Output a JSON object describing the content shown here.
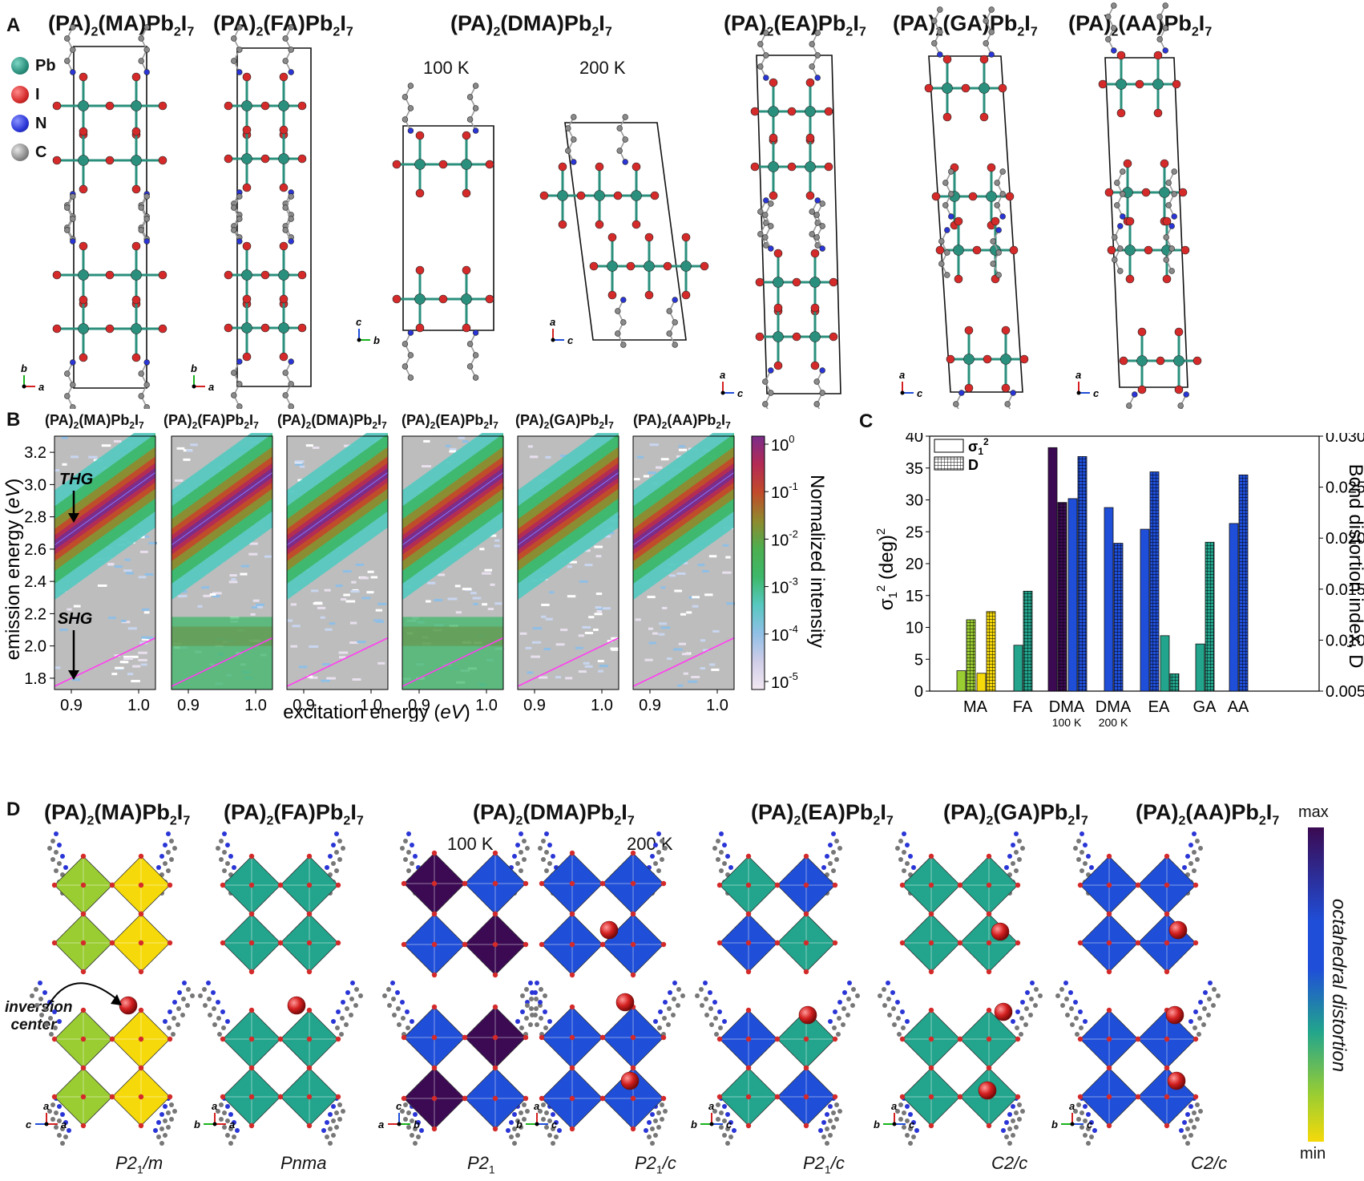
{
  "panel_a": {
    "label": "A",
    "titles": [
      {
        "prefix": "(PA)",
        "s1": "2",
        "mid": "(MA)Pb",
        "s2": "2",
        "end": "I",
        "s3": "7"
      },
      {
        "prefix": "(PA)",
        "s1": "2",
        "mid": "(FA)Pb",
        "s2": "2",
        "end": "I",
        "s3": "7"
      },
      {
        "prefix": "(PA)",
        "s1": "2",
        "mid": "(DMA)Pb",
        "s2": "2",
        "end": "I",
        "s3": "7"
      },
      {
        "prefix": "(PA)",
        "s1": "2",
        "mid": "(EA)Pb",
        "s2": "2",
        "end": "I",
        "s3": "7"
      },
      {
        "prefix": "(PA)",
        "s1": "2",
        "mid": "(GA)Pb",
        "s2": "2",
        "end": "I",
        "s3": "7"
      },
      {
        "prefix": "(PA)",
        "s1": "2",
        "mid": "(AA)Pb",
        "s2": "2",
        "end": "I",
        "s3": "7"
      }
    ],
    "temps": [
      "100 K",
      "200 K"
    ],
    "legend": [
      {
        "label": "Pb",
        "color": "#2a8f7c"
      },
      {
        "label": "I",
        "color": "#d42a2a"
      },
      {
        "label": "N",
        "color": "#2a35d6"
      },
      {
        "label": "C",
        "color": "#8a8a8a"
      }
    ],
    "axes": [
      [
        "b",
        "a"
      ],
      [
        "b",
        "a"
      ],
      [
        "c",
        "b"
      ],
      [
        "a",
        "c"
      ],
      [
        "a",
        "c"
      ],
      [
        "a",
        "c"
      ],
      [
        "a",
        "c"
      ]
    ]
  },
  "panel_b": {
    "label": "B",
    "titles": [
      {
        "prefix": "(PA)",
        "s1": "2",
        "mid": "(MA)Pb",
        "s2": "2",
        "end": "I",
        "s3": "7"
      },
      {
        "prefix": "(PA)",
        "s1": "2",
        "mid": "(FA)Pb",
        "s2": "2",
        "end": "I",
        "s3": "7"
      },
      {
        "prefix": "(PA)",
        "s1": "2",
        "mid": "(DMA)Pb",
        "s2": "2",
        "end": "I",
        "s3": "7"
      },
      {
        "prefix": "(PA)",
        "s1": "2",
        "mid": "(EA)Pb",
        "s2": "2",
        "end": "I",
        "s3": "7"
      },
      {
        "prefix": "(PA)",
        "s1": "2",
        "mid": "(GA)Pb",
        "s2": "2",
        "end": "I",
        "s3": "7"
      },
      {
        "prefix": "(PA)",
        "s1": "2",
        "mid": "(AA)Pb",
        "s2": "2",
        "end": "I",
        "s3": "7"
      }
    ],
    "ylabel_pre": "emission energy (",
    "ylabel_unit": "eV",
    "ylabel_post": ")",
    "xlabel_pre": "excitation energy (",
    "xlabel_unit": "eV",
    "xlabel_post": ")",
    "yticks": [
      "3.2",
      "3.0",
      "2.8",
      "2.6",
      "2.4",
      "2.2",
      "2.0",
      "1.8"
    ],
    "xticks": [
      "0.9",
      "1.0"
    ],
    "thg_label": "THG",
    "shg_label": "SHG",
    "colorbar_label": "Normalized intensity",
    "colorbar_ticks": [
      {
        "base": "10",
        "exp": "0"
      },
      {
        "base": "10",
        "exp": "-1"
      },
      {
        "base": "10",
        "exp": "-2"
      },
      {
        "base": "10",
        "exp": "-3"
      },
      {
        "base": "10",
        "exp": "-4"
      },
      {
        "base": "10",
        "exp": "-5"
      }
    ],
    "shg_band": [
      false,
      true,
      false,
      true,
      false,
      false
    ]
  },
  "chart_data": {
    "type": "bar",
    "categories": [
      "MA",
      "FA",
      "DMA 100 K",
      "DMA 200 K",
      "EA",
      "GA",
      "AA"
    ],
    "category_labels": [
      {
        "main": "MA",
        "sub": ""
      },
      {
        "main": "FA",
        "sub": ""
      },
      {
        "main": "DMA",
        "sub": "100 K"
      },
      {
        "main": "DMA",
        "sub": "200 K"
      },
      {
        "main": "EA",
        "sub": ""
      },
      {
        "main": "GA",
        "sub": ""
      },
      {
        "main": "AA",
        "sub": ""
      }
    ],
    "legend": [
      {
        "name": "σ1²",
        "style": "open"
      },
      {
        "name": "D",
        "style": "hatched"
      }
    ],
    "ylabel_left": "σ1² (deg)²",
    "ylabel_right": "Bond distortion index, D",
    "ylim_left": [
      0,
      40
    ],
    "ylim_right": [
      0.005,
      0.03
    ],
    "yticks_left": [
      "0",
      "5",
      "10",
      "15",
      "20",
      "25",
      "30",
      "35",
      "40"
    ],
    "yticks_right": [
      "0.005",
      "0.010",
      "0.015",
      "0.020",
      "0.025",
      "0.030"
    ],
    "bars": [
      {
        "category": 0,
        "sigma2": 3.2,
        "D": 0.012,
        "color": "#9acd32"
      },
      {
        "category": 0,
        "sigma2": 2.8,
        "D": 0.0128,
        "color": "#f5d90a"
      },
      {
        "category": 1,
        "sigma2": 7.2,
        "D": 0.0148,
        "color": "#22a58c"
      },
      {
        "category": 2,
        "sigma2": 38.2,
        "D": 0.0235,
        "color": "#3b0a52"
      },
      {
        "category": 2,
        "sigma2": 30.2,
        "D": 0.028,
        "color": "#1f4ed8"
      },
      {
        "category": 3,
        "sigma2": 28.8,
        "D": 0.0195,
        "color": "#1f4ed8"
      },
      {
        "category": 4,
        "sigma2": 25.4,
        "D": 0.0265,
        "color": "#1f4ed8"
      },
      {
        "category": 4,
        "sigma2": 8.7,
        "D": 0.0067,
        "color": "#22a58c"
      },
      {
        "category": 5,
        "sigma2": 7.4,
        "D": 0.0196,
        "color": "#22a58c"
      },
      {
        "category": 6,
        "sigma2": 26.3,
        "D": 0.0262,
        "color": "#1f4ed8"
      }
    ]
  },
  "panel_c": {
    "label": "C"
  },
  "panel_d": {
    "label": "D",
    "titles": [
      {
        "prefix": "(PA)",
        "s1": "2",
        "mid": "(MA)Pb",
        "s2": "2",
        "end": "I",
        "s3": "7"
      },
      {
        "prefix": "(PA)",
        "s1": "2",
        "mid": "(FA)Pb",
        "s2": "2",
        "end": "I",
        "s3": "7"
      },
      {
        "prefix": "(PA)",
        "s1": "2",
        "mid": "(DMA)Pb",
        "s2": "2",
        "end": "I",
        "s3": "7"
      },
      {
        "prefix": "(PA)",
        "s1": "2",
        "mid": "(EA)Pb",
        "s2": "2",
        "end": "I",
        "s3": "7"
      },
      {
        "prefix": "(PA)",
        "s1": "2",
        "mid": "(GA)Pb",
        "s2": "2",
        "end": "I",
        "s3": "7"
      },
      {
        "prefix": "(PA)",
        "s1": "2",
        "mid": "(AA)Pb",
        "s2": "2",
        "end": "I",
        "s3": "7"
      }
    ],
    "temps": [
      "100 K",
      "200 K"
    ],
    "inversion_label_1": "inversion",
    "inversion_label_2": "center",
    "space_groups": [
      {
        "pre": "P2",
        "sub": "1",
        "post": "/m"
      },
      {
        "pre": "Pnma",
        "sub": "",
        "post": ""
      },
      {
        "pre": "P2",
        "sub": "1",
        "post": ""
      },
      {
        "pre": "P2",
        "sub": "1",
        "post": "/c"
      },
      {
        "pre": "P2",
        "sub": "1",
        "post": "/c"
      },
      {
        "pre": "C2",
        "sub": "",
        "post": "/c"
      },
      {
        "pre": "C2",
        "sub": "",
        "post": "/c"
      }
    ],
    "colorbar_max": "max",
    "colorbar_min": "min",
    "colorbar_label": "octahedral distortion",
    "axes": [
      [
        "c",
        "a"
      ],
      [
        "b",
        "a"
      ],
      [
        "c",
        "a",
        "b"
      ],
      [
        "a",
        "b",
        "c"
      ],
      [
        "a",
        "b",
        "c"
      ],
      [
        "a",
        "b",
        "c"
      ],
      [
        "a",
        "b",
        "c"
      ]
    ],
    "octa_colors": [
      [
        "#9acd32",
        "#f5d90a",
        "#9acd32",
        "#f5d90a"
      ],
      [
        "#22a58c",
        "#22a58c",
        "#22a58c",
        "#22a58c"
      ],
      [
        "#3b0a52",
        "#1f4ed8",
        "#1f4ed8",
        "#3b0a52"
      ],
      [
        "#1f4ed8",
        "#1f4ed8",
        "#1f4ed8",
        "#1f4ed8"
      ],
      [
        "#22a58c",
        "#1f4ed8",
        "#1f4ed8",
        "#22a58c"
      ],
      [
        "#22a58c",
        "#22a58c",
        "#22a58c",
        "#22a58c"
      ],
      [
        "#1f4ed8",
        "#1f4ed8",
        "#1f4ed8",
        "#1f4ed8"
      ]
    ]
  }
}
